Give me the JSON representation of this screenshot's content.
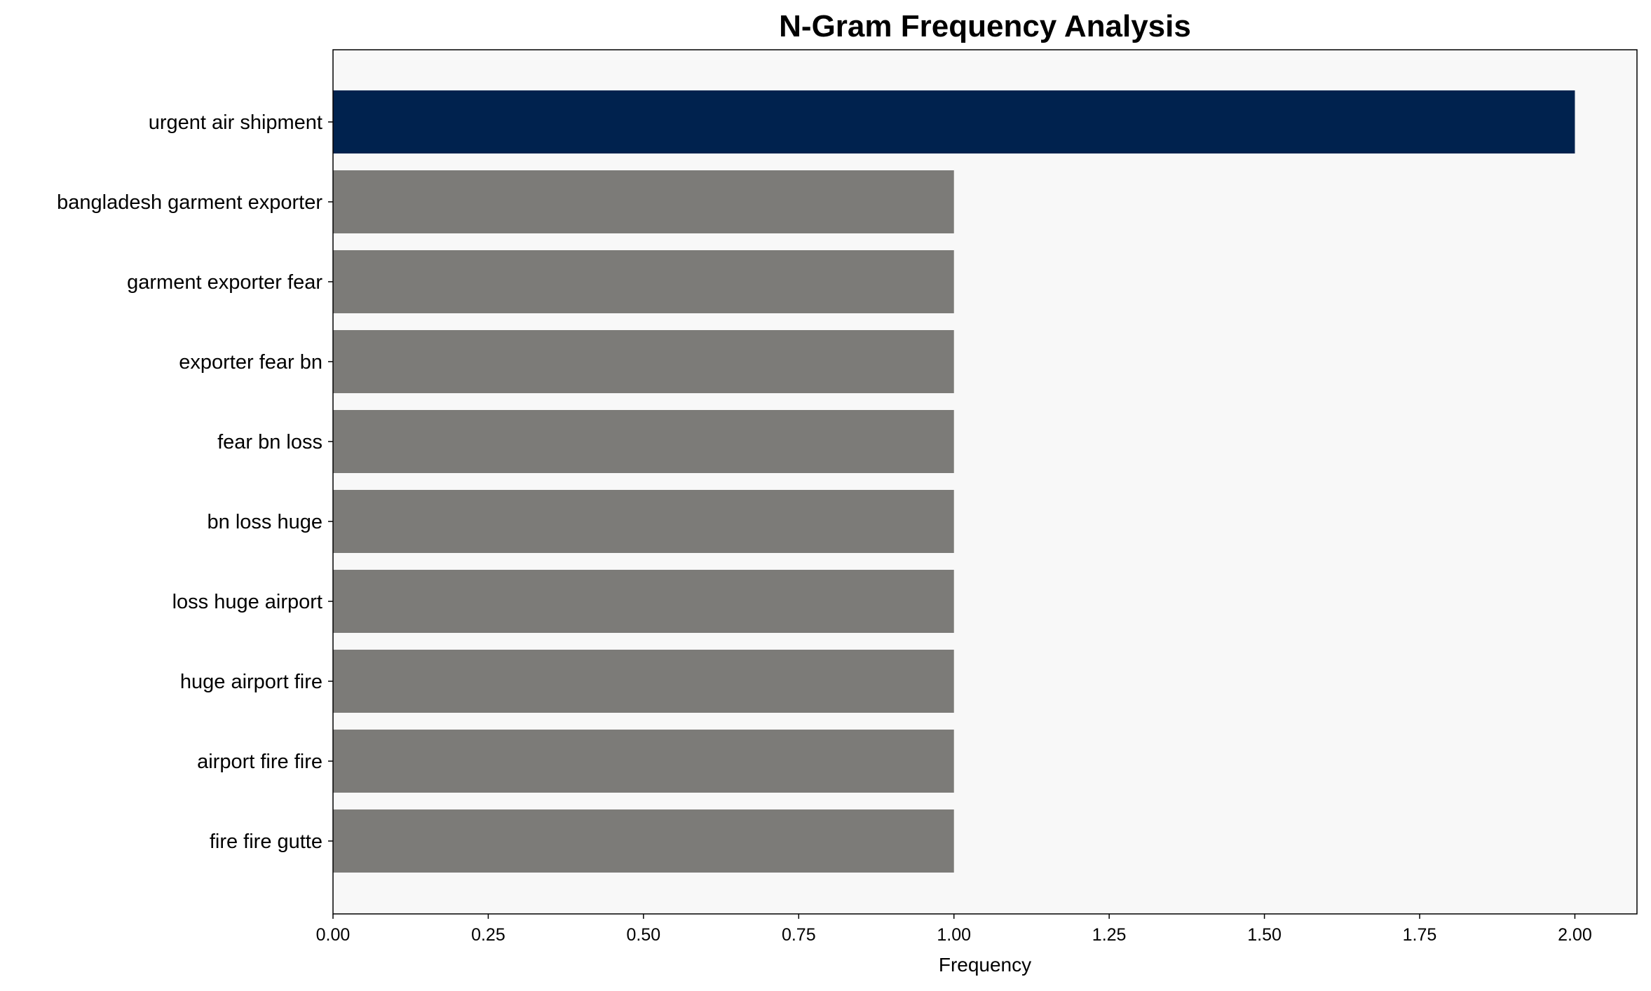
{
  "chart_data": {
    "type": "bar",
    "orientation": "horizontal",
    "title": "N-Gram Frequency Analysis",
    "xlabel": "Frequency",
    "ylabel": "",
    "xlim": [
      0,
      2.1
    ],
    "xticks": [
      "0.00",
      "0.25",
      "0.50",
      "0.75",
      "1.00",
      "1.25",
      "1.50",
      "1.75",
      "2.00"
    ],
    "categories": [
      "urgent air shipment",
      "bangladesh garment exporter",
      "garment exporter fear",
      "exporter fear bn",
      "fear bn loss",
      "bn loss huge",
      "loss huge airport",
      "huge airport fire",
      "airport fire fire",
      "fire fire gutte"
    ],
    "values": [
      2,
      1,
      1,
      1,
      1,
      1,
      1,
      1,
      1,
      1
    ],
    "colors": {
      "highlight": "#00224e",
      "default": "#7c7b78",
      "plot_background": "#f8f8f8"
    },
    "grid": false,
    "legend": "none"
  }
}
